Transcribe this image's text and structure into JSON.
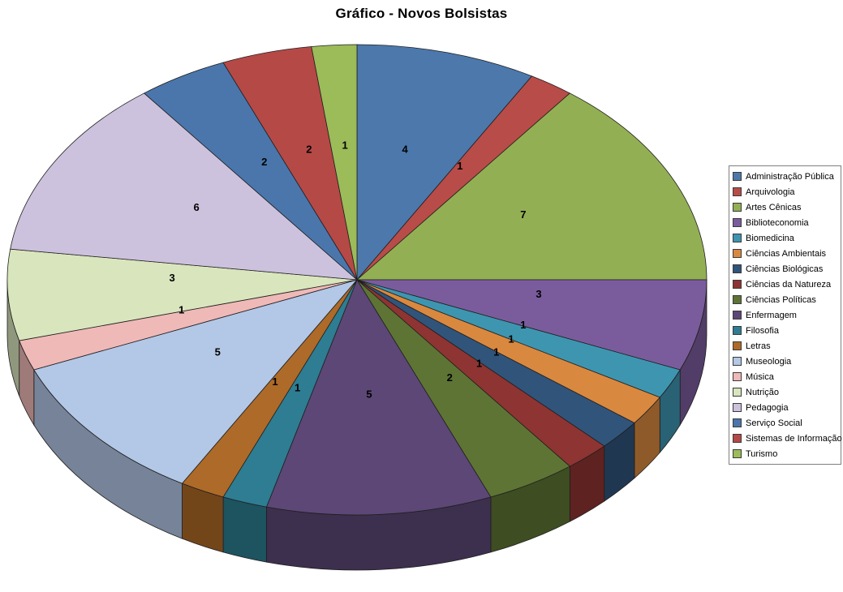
{
  "chart_data": {
    "type": "pie",
    "style": "3d-pie",
    "title": "Gráfico - Novos Bolsistas",
    "legend_position": "right",
    "labels": "values",
    "start_angle_deg": 0,
    "categories": [
      "Administração Pública",
      "Arquivologia",
      "Artes Cênicas",
      "Biblioteconomia",
      "Biomedicina",
      "Ciências Ambientais",
      "Ciências Biológicas",
      "Ciências da Natureza",
      "Ciências Políticas",
      "Enfermagem",
      "Filosofia",
      "Letras",
      "Museologia",
      "Música",
      "Nutrição",
      "Pedagogia",
      "Serviço Social",
      "Sistemas de Informação",
      "Turismo"
    ],
    "values": [
      4,
      1,
      7,
      3,
      1,
      1,
      1,
      1,
      2,
      5,
      1,
      1,
      5,
      1,
      3,
      6,
      2,
      2,
      1
    ],
    "colors": [
      "#4C78AC",
      "#B84C48",
      "#93AF54",
      "#7A5C9C",
      "#3E95B0",
      "#D9883F",
      "#31547A",
      "#8E3432",
      "#5E7434",
      "#5C4776",
      "#2E7D92",
      "#AE6A28",
      "#B3C7E6",
      "#EFB9B8",
      "#D9E5BD",
      "#CDC2DD",
      "#4A76AC",
      "#B54946",
      "#9CBB59"
    ],
    "value_label_color": "#000000",
    "background_color": "#FFFFFF"
  }
}
